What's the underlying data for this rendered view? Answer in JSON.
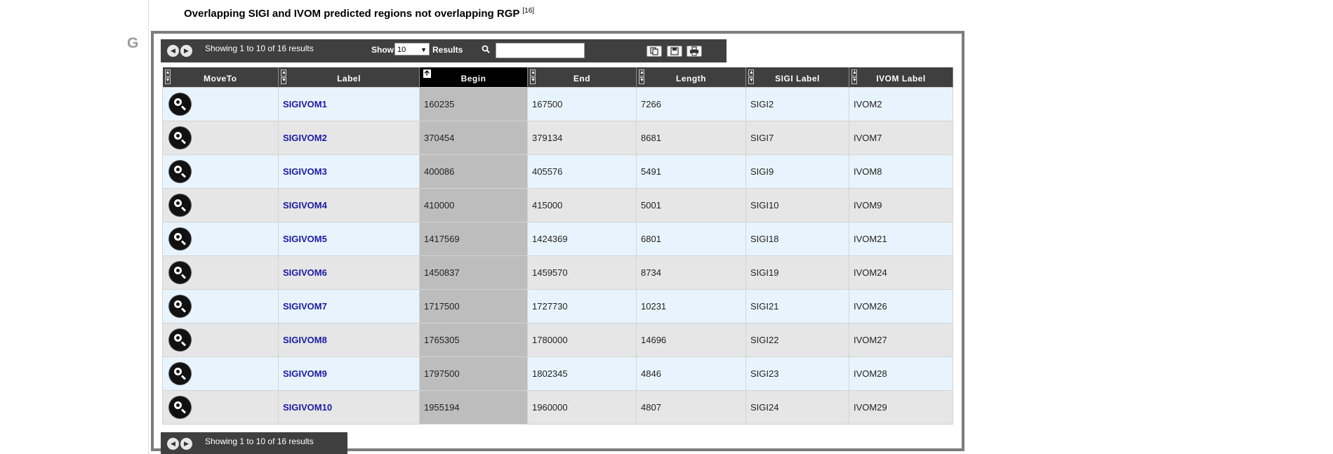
{
  "section": {
    "letter": "G"
  },
  "title": {
    "text": "Overlapping SIGI and IVOM predicted regions not overlapping RGP",
    "ref": "[16]"
  },
  "toolbar": {
    "showing_text": "Showing 1 to 10 of 16 results",
    "show_label": "Show",
    "page_size": "10",
    "results_label": "Results",
    "search_placeholder": ""
  },
  "footer": {
    "showing_text": "Showing 1 to 10 of 16 results"
  },
  "table": {
    "columns": [
      "MoveTo",
      "Label",
      "Begin",
      "End",
      "Length",
      "SIGI Label",
      "IVOM Label"
    ],
    "sorted_column": "Begin",
    "rows": [
      {
        "label": "SIGIVOM1",
        "begin": "160235",
        "end": "167500",
        "length": "7266",
        "sigi": "SIGI2",
        "ivom": "IVOM2"
      },
      {
        "label": "SIGIVOM2",
        "begin": "370454",
        "end": "379134",
        "length": "8681",
        "sigi": "SIGI7",
        "ivom": "IVOM7"
      },
      {
        "label": "SIGIVOM3",
        "begin": "400086",
        "end": "405576",
        "length": "5491",
        "sigi": "SIGI9",
        "ivom": "IVOM8"
      },
      {
        "label": "SIGIVOM4",
        "begin": "410000",
        "end": "415000",
        "length": "5001",
        "sigi": "SIGI10",
        "ivom": "IVOM9"
      },
      {
        "label": "SIGIVOM5",
        "begin": "1417569",
        "end": "1424369",
        "length": "6801",
        "sigi": "SIGI18",
        "ivom": "IVOM21"
      },
      {
        "label": "SIGIVOM6",
        "begin": "1450837",
        "end": "1459570",
        "length": "8734",
        "sigi": "SIGI19",
        "ivom": "IVOM24"
      },
      {
        "label": "SIGIVOM7",
        "begin": "1717500",
        "end": "1727730",
        "length": "10231",
        "sigi": "SIGI21",
        "ivom": "IVOM26"
      },
      {
        "label": "SIGIVOM8",
        "begin": "1765305",
        "end": "1780000",
        "length": "14696",
        "sigi": "SIGI22",
        "ivom": "IVOM27"
      },
      {
        "label": "SIGIVOM9",
        "begin": "1797500",
        "end": "1802345",
        "length": "4846",
        "sigi": "SIGI23",
        "ivom": "IVOM28"
      },
      {
        "label": "SIGIVOM10",
        "begin": "1955194",
        "end": "1960000",
        "length": "4807",
        "sigi": "SIGI24",
        "ivom": "IVOM29"
      }
    ]
  },
  "icons": {
    "prev": "arrow-left-icon",
    "next": "arrow-right-icon",
    "search": "search-icon",
    "copy": "copy-icon",
    "save": "save-icon",
    "print": "print-icon",
    "moveto": "zoom-icon"
  },
  "colors": {
    "header_bg": "#3f3f3f",
    "sorted_header_bg": "#000000",
    "link": "#1a1aa6",
    "row_odd": "#e8f4fd",
    "row_even": "#e6e6e6",
    "sorted_column_bg": "#bdbdbd"
  }
}
